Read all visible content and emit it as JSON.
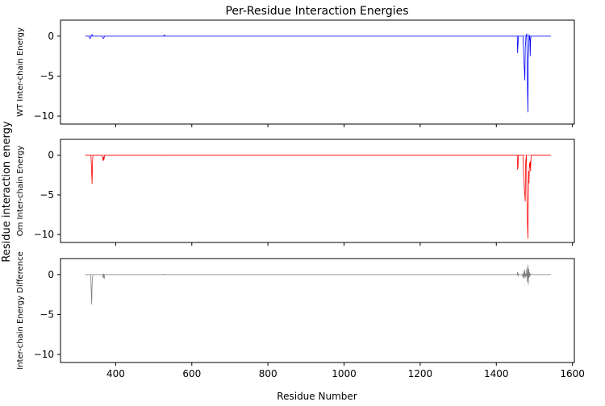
{
  "chart_data": {
    "type": "line",
    "title": "Per-Residue Interaction Energies",
    "xlabel": "Residue Number",
    "ylabel": "Residue interaction energy",
    "xlim": [
      255,
      1605
    ],
    "ylim": [
      -11,
      2
    ],
    "xticks": [
      400,
      600,
      800,
      1000,
      1200,
      1400,
      1600
    ],
    "yticks": [
      0,
      -5,
      -10
    ],
    "grid": false,
    "sharex": true,
    "panels": [
      {
        "ylabel": "WT Inter-chain Energy",
        "series": [
          {
            "color": "#0000ff",
            "baseline_x": [
              320,
              1543
            ],
            "x": [
              320,
              330,
              331,
              333,
              335,
              336,
              338,
              340,
              365,
              367,
              369,
              371,
              373,
              526,
              528,
              530,
              1455,
              1456,
              1457,
              1458,
              1459,
              1460,
              1470,
              1472,
              1474,
              1475,
              1476,
              1478,
              1480,
              1482,
              1483,
              1484,
              1485,
              1486,
              1487,
              1488,
              1489,
              1490,
              1491,
              1493,
              1495,
              1543
            ],
            "y": [
              0,
              0,
              -0.2,
              -0.3,
              -0.1,
              0.1,
              0.2,
              0,
              0,
              -0.3,
              -0.2,
              0,
              0,
              0,
              0.15,
              0,
              0,
              -2.1,
              -1.0,
              0,
              0,
              0,
              0,
              -2.5,
              -4.5,
              -5.5,
              -1.5,
              0,
              0.3,
              -6.5,
              -9.5,
              -3.0,
              -1.5,
              0.2,
              -0.5,
              0,
              -2.5,
              -0.5,
              0,
              0,
              0,
              0
            ]
          }
        ]
      },
      {
        "ylabel": "Om Inter-chain Energy",
        "series": [
          {
            "color": "#ff0000",
            "baseline_x": [
              320,
              1543
            ],
            "x": [
              320,
              335,
              336,
              337,
              338,
              339,
              340,
              341,
              365,
              366,
              367,
              368,
              369,
              370,
              371,
              372,
              526,
              528,
              530,
              1455,
              1456,
              1457,
              1458,
              1459,
              1460,
              1470,
              1472,
              1474,
              1476,
              1477,
              1479,
              1481,
              1483,
              1484,
              1485,
              1486,
              1487,
              1488,
              1489,
              1490,
              1491,
              1492,
              1495,
              1543
            ],
            "y": [
              0,
              0,
              -1.0,
              -2.5,
              -3.6,
              -1.0,
              0,
              0,
              0,
              -0.4,
              -0.7,
              -0.2,
              -0.6,
              -0.3,
              0,
              0,
              0,
              -0.05,
              0,
              0,
              -1.8,
              -1.5,
              0,
              0,
              0,
              0,
              -2.5,
              -4.5,
              -5.8,
              -1.0,
              0,
              -7.0,
              -10.5,
              -6.5,
              -2.0,
              -3.5,
              -1.0,
              -1.5,
              -0.8,
              -2.0,
              -0.5,
              0,
              0,
              0
            ]
          }
        ]
      },
      {
        "ylabel": "Inter-chain Energy Difference",
        "series": [
          {
            "color": "#808080",
            "baseline_x": [
              320,
              1543
            ],
            "x": [
              320,
              334,
              335,
              336,
              337,
              338,
              339,
              340,
              341,
              365,
              366,
              367,
              368,
              369,
              370,
              371,
              372,
              526,
              528,
              530,
              1455,
              1456,
              1457,
              1458,
              1459,
              1468,
              1470,
              1471,
              1472,
              1473,
              1474,
              1475,
              1476,
              1477,
              1478,
              1479,
              1480,
              1481,
              1482,
              1483,
              1484,
              1485,
              1486,
              1487,
              1488,
              1490,
              1492,
              1543
            ],
            "y": [
              0,
              0,
              -0.8,
              -2.5,
              -3.7,
              -1.2,
              -0.4,
              0,
              0,
              0,
              -0.1,
              -0.4,
              0.1,
              -0.3,
              -0.5,
              0,
              0,
              0,
              0.05,
              0,
              0,
              0.3,
              -0.2,
              0.1,
              0,
              0,
              -0.3,
              0.2,
              -0.5,
              0.4,
              -0.2,
              0.6,
              -0.4,
              0.1,
              0,
              -0.2,
              0.8,
              -0.3,
              -0.9,
              1.2,
              -1.2,
              0.7,
              -0.4,
              0.3,
              -0.2,
              0.1,
              0,
              0
            ]
          }
        ]
      }
    ]
  }
}
